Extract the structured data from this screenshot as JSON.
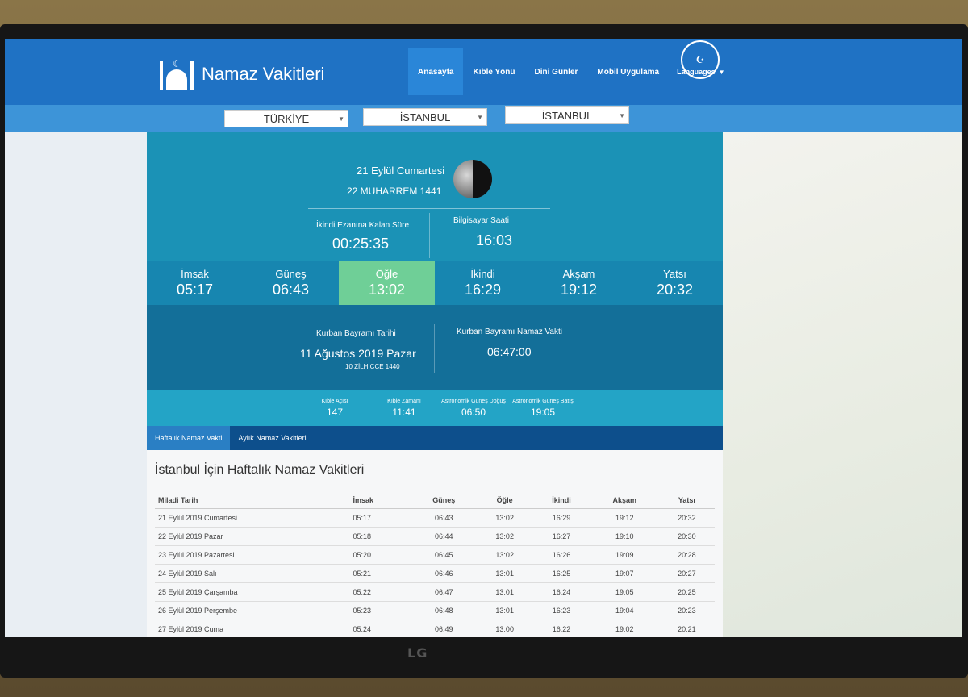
{
  "header": {
    "logo_text": "Namaz Vakitleri",
    "nav": [
      "Anasayfa",
      "Kıble Yönü",
      "Dini Günler",
      "Mobil Uygulama"
    ],
    "languages_label": "Languages"
  },
  "selects": {
    "country": "TÜRKİYE",
    "city": "İSTANBUL",
    "district": "İSTANBUL"
  },
  "today": {
    "gregorian": "21 Eylül Cumartesi",
    "hijri": "22 MUHARREM 1441",
    "countdown_label": "İkindi Ezanına Kalan Süre",
    "countdown_value": "00:25:35",
    "clock_label": "Bilgisayar Saati",
    "clock_value": "16:03"
  },
  "times": [
    {
      "name": "İmsak",
      "value": "05:17"
    },
    {
      "name": "Güneş",
      "value": "06:43"
    },
    {
      "name": "Öğle",
      "value": "13:02"
    },
    {
      "name": "İkindi",
      "value": "16:29"
    },
    {
      "name": "Akşam",
      "value": "19:12"
    },
    {
      "name": "Yatsı",
      "value": "20:32"
    }
  ],
  "bayram": {
    "date_label": "Kurban Bayramı Tarihi",
    "date_value": "11 Ağustos 2019 Pazar",
    "hijri": "10 ZİLHİCCE 1440",
    "time_label": "Kurban Bayramı Namaz Vakti",
    "time_value": "06:47:00"
  },
  "kible": [
    {
      "label": "Kıble Açısı",
      "value": "147"
    },
    {
      "label": "Kıble Zamanı",
      "value": "11:41"
    },
    {
      "label": "Astronomik Güneş Doğuş",
      "value": "06:50"
    },
    {
      "label": "Astronomik Güneş Batış",
      "value": "19:05"
    }
  ],
  "tabs": [
    "Haftalık Namaz Vakti",
    "Aylık Namaz Vakitleri"
  ],
  "weekly": {
    "title": "İstanbul İçin Haftalık Namaz Vakitleri",
    "headers": [
      "Miladi Tarih",
      "İmsak",
      "Güneş",
      "Öğle",
      "İkindi",
      "Akşam",
      "Yatsı"
    ],
    "rows": [
      [
        "21 Eylül 2019 Cumartesi",
        "05:17",
        "06:43",
        "13:02",
        "16:29",
        "19:12",
        "20:32"
      ],
      [
        "22 Eylül 2019 Pazar",
        "05:18",
        "06:44",
        "13:02",
        "16:27",
        "19:10",
        "20:30"
      ],
      [
        "23 Eylül 2019 Pazartesi",
        "05:20",
        "06:45",
        "13:02",
        "16:26",
        "19:09",
        "20:28"
      ],
      [
        "24 Eylül 2019 Salı",
        "05:21",
        "06:46",
        "13:01",
        "16:25",
        "19:07",
        "20:27"
      ],
      [
        "25 Eylül 2019 Çarşamba",
        "05:22",
        "06:47",
        "13:01",
        "16:24",
        "19:05",
        "20:25"
      ],
      [
        "26 Eylül 2019 Perşembe",
        "05:23",
        "06:48",
        "13:01",
        "16:23",
        "19:04",
        "20:23"
      ],
      [
        "27 Eylül 2019 Cuma",
        "05:24",
        "06:49",
        "13:00",
        "16:22",
        "19:02",
        "20:21"
      ]
    ]
  },
  "monitor_brand": "LG"
}
